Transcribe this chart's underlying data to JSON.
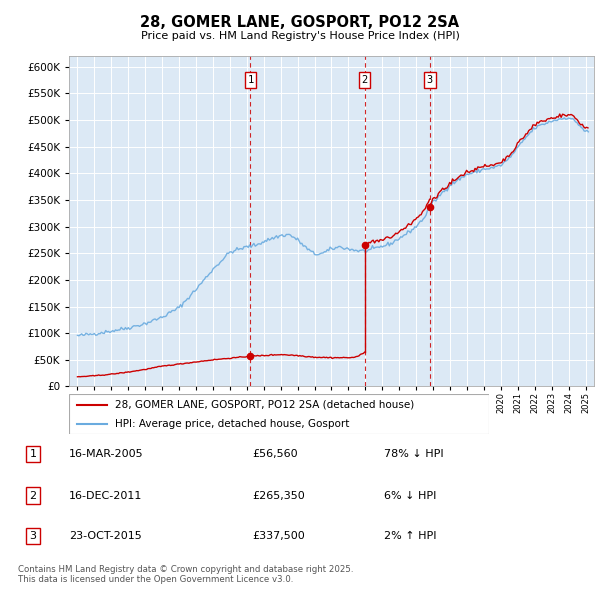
{
  "title": "28, GOMER LANE, GOSPORT, PO12 2SA",
  "subtitle": "Price paid vs. HM Land Registry's House Price Index (HPI)",
  "legend_label_red": "28, GOMER LANE, GOSPORT, PO12 2SA (detached house)",
  "legend_label_blue": "HPI: Average price, detached house, Gosport",
  "footnote": "Contains HM Land Registry data © Crown copyright and database right 2025.\nThis data is licensed under the Open Government Licence v3.0.",
  "sales": [
    {
      "num": 1,
      "date": "16-MAR-2005",
      "price": 56560,
      "year": 2005.21
    },
    {
      "num": 2,
      "date": "16-DEC-2011",
      "price": 265350,
      "year": 2011.96
    },
    {
      "num": 3,
      "date": "23-OCT-2015",
      "price": 337500,
      "year": 2015.81
    }
  ],
  "table_rows": [
    {
      "num": 1,
      "date": "16-MAR-2005",
      "price": "£56,560",
      "pct": "78% ↓ HPI"
    },
    {
      "num": 2,
      "date": "16-DEC-2011",
      "price": "£265,350",
      "pct": "6% ↓ HPI"
    },
    {
      "num": 3,
      "date": "23-OCT-2015",
      "price": "£337,500",
      "pct": "2% ↑ HPI"
    }
  ],
  "ylim": [
    0,
    620000
  ],
  "yticks": [
    0,
    50000,
    100000,
    150000,
    200000,
    250000,
    300000,
    350000,
    400000,
    450000,
    500000,
    550000,
    600000
  ],
  "xlim_start": 1994.5,
  "xlim_end": 2025.5,
  "background_color": "#dce9f5",
  "red_color": "#cc0000",
  "blue_color": "#6aabdf",
  "grid_color": "#ffffff"
}
